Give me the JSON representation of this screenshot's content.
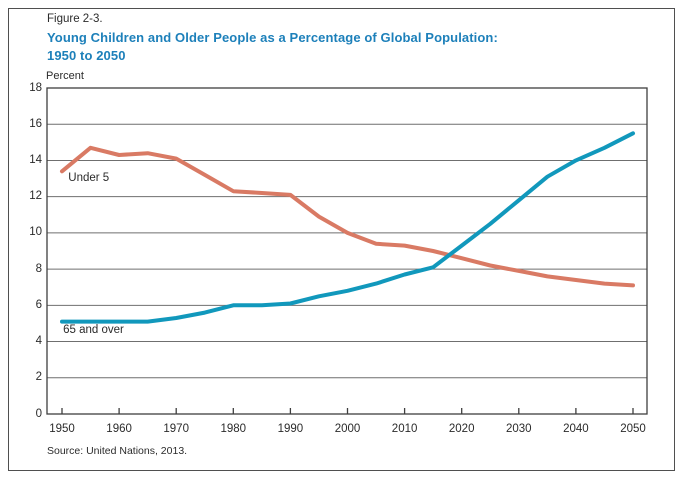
{
  "figure": {
    "label": "Figure 2-3.",
    "title_line1": "Young Children and Older People as a Percentage of Global Population:",
    "title_line2": "1950 to 2050",
    "unit_label": "Percent",
    "source": "Source: United Nations, 2013."
  },
  "colors": {
    "title": "#1d80ba",
    "under5_line": "#d97a64",
    "over65_line": "#1198bc",
    "grid": "#6f6f6f",
    "frame": "#3e3e3e",
    "text": "#2b2b2b",
    "border": "#4f4f4f"
  },
  "chart_data": {
    "type": "line",
    "title": "Young Children and Older People as a Percentage of Global Population: 1950 to 2050",
    "xlabel": "",
    "ylabel": "Percent",
    "ylim": [
      0,
      18
    ],
    "xlim": [
      1950,
      2050
    ],
    "grid": "horizontal",
    "legend": "inline-labels",
    "y_ticks": [
      0,
      2,
      4,
      6,
      8,
      10,
      12,
      14,
      16,
      18
    ],
    "x_ticks": [
      1950,
      1960,
      1970,
      1980,
      1990,
      2000,
      2010,
      2020,
      2030,
      2040,
      2050
    ],
    "x": [
      1950,
      1955,
      1960,
      1965,
      1970,
      1975,
      1980,
      1985,
      1990,
      1995,
      2000,
      2005,
      2010,
      2015,
      2020,
      2025,
      2030,
      2035,
      2040,
      2045,
      2050
    ],
    "series": [
      {
        "name": "Under 5",
        "color": "#d97a64",
        "values": [
          13.4,
          14.7,
          14.3,
          14.4,
          14.1,
          13.2,
          12.3,
          12.2,
          12.1,
          10.9,
          10.0,
          9.4,
          9.3,
          9.0,
          8.6,
          8.2,
          7.9,
          7.6,
          7.4,
          7.2,
          7.1
        ]
      },
      {
        "name": "65 and over",
        "color": "#1198bc",
        "values": [
          5.1,
          5.1,
          5.1,
          5.1,
          5.3,
          5.6,
          6.0,
          6.0,
          6.1,
          6.5,
          6.8,
          7.2,
          7.7,
          8.1,
          9.3,
          10.5,
          11.8,
          13.1,
          14.0,
          14.7,
          15.5
        ]
      }
    ],
    "annotations": [
      {
        "text": "Under 5",
        "year": 1951.1,
        "value": 13.0
      },
      {
        "text": "65 and over",
        "year": 1950.2,
        "value": 4.58
      }
    ]
  }
}
